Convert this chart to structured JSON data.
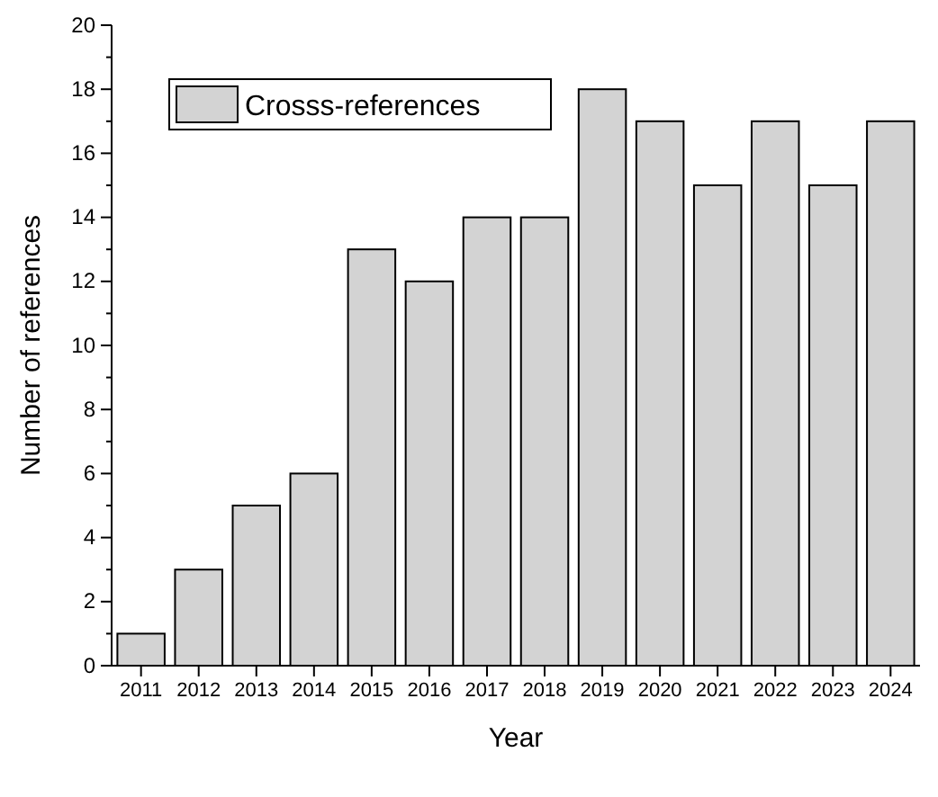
{
  "chart_data": {
    "type": "bar",
    "xlabel": "Year",
    "ylabel": "Number of references",
    "categories": [
      "2011",
      "2012",
      "2013",
      "2014",
      "2015",
      "2016",
      "2017",
      "2018",
      "2019",
      "2020",
      "2021",
      "2022",
      "2023",
      "2024"
    ],
    "series": [
      {
        "name": "Crosss-references",
        "color": "#d3d3d3",
        "values": [
          1,
          3,
          5,
          6,
          13,
          12,
          14,
          14,
          18,
          17,
          15,
          17,
          15,
          17
        ]
      }
    ],
    "ylim": [
      0,
      20
    ],
    "yticks": [
      0,
      2,
      4,
      6,
      8,
      10,
      12,
      14,
      16,
      18,
      20
    ],
    "legend": "top left",
    "grid": false
  }
}
